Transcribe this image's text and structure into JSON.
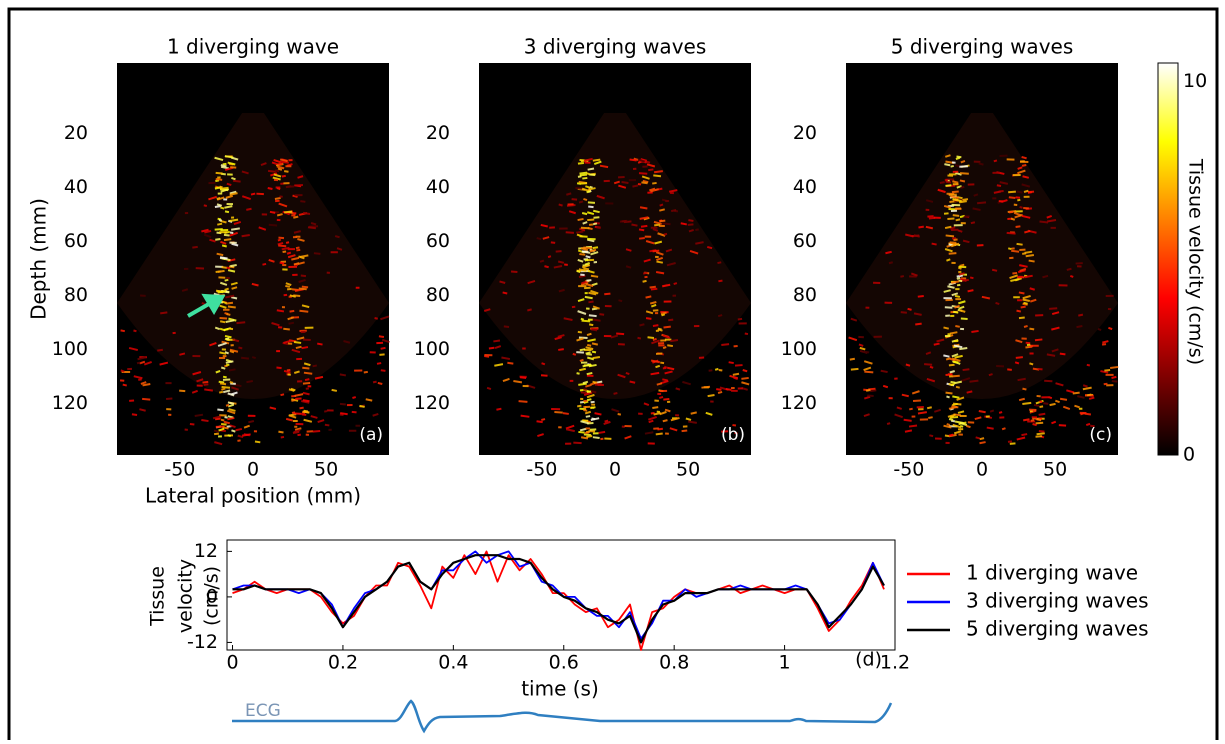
{
  "chart_data": [
    {
      "type": "heatmap",
      "panels": [
        {
          "title": "1 diverging wave",
          "label": "(a)"
        },
        {
          "title": "3 diverging waves",
          "label": "(b)"
        },
        {
          "title": "5 diverging waves",
          "label": "(c)"
        }
      ],
      "ylabel": "Depth (mm)",
      "xlabel": "Lateral position (mm)",
      "ylim": [
        -6,
        139
      ],
      "yticks": [
        20,
        40,
        60,
        80,
        100,
        120
      ],
      "xlim": [
        -93,
        93
      ],
      "xticks": [
        -50,
        0,
        50
      ],
      "colorbar": {
        "label": "Tissue  velocity (cm/s)",
        "lim": [
          0,
          10.5
        ],
        "ticks": [
          0,
          10
        ]
      }
    },
    {
      "type": "line",
      "ylabel": [
        "Tissue",
        "velocity",
        "(cm/s)"
      ],
      "xlabel": "time (s)",
      "annotation": "(d)",
      "ecg_label": "ECG",
      "xlim": [
        -0.01,
        1.2
      ],
      "xticks": [
        0,
        0.2,
        0.4,
        0.6,
        0.8,
        1,
        1.2
      ],
      "ylim": [
        -14,
        15
      ],
      "yticks": [
        -12,
        0,
        12
      ],
      "x": [
        0,
        0.02,
        0.04,
        0.06,
        0.08,
        0.1,
        0.12,
        0.14,
        0.16,
        0.18,
        0.2,
        0.22,
        0.24,
        0.26,
        0.28,
        0.3,
        0.32,
        0.34,
        0.36,
        0.38,
        0.4,
        0.42,
        0.44,
        0.46,
        0.48,
        0.5,
        0.52,
        0.54,
        0.56,
        0.58,
        0.6,
        0.62,
        0.64,
        0.66,
        0.68,
        0.7,
        0.72,
        0.74,
        0.76,
        0.78,
        0.8,
        0.82,
        0.84,
        0.86,
        0.88,
        0.9,
        0.92,
        0.94,
        0.96,
        0.98,
        1,
        1.02,
        1.04,
        1.06,
        1.08,
        1.1,
        1.12,
        1.14,
        1.16,
        1.18
      ],
      "series": [
        {
          "name": "1 diverging wave",
          "color": "#ff0000",
          "values": [
            1,
            2,
            4,
            2,
            1,
            2,
            2,
            2,
            0,
            -4,
            -7,
            -5,
            0,
            3,
            3,
            9,
            8,
            3,
            -3,
            8,
            5,
            11,
            6,
            12,
            4,
            11,
            7,
            10,
            6,
            1,
            1,
            -2,
            -4,
            -3,
            -8,
            -6,
            -2,
            -14,
            -4,
            -3,
            0,
            2,
            1,
            1,
            2,
            3,
            1,
            2,
            3,
            2,
            1,
            2,
            2,
            -3,
            -9,
            -6,
            -1,
            3,
            9,
            2
          ]
        },
        {
          "name": "3 diverging waves",
          "color": "#0000ff",
          "values": [
            2,
            3,
            3,
            2,
            2,
            2,
            1,
            2,
            1,
            -2,
            -8,
            -3,
            1,
            2,
            4,
            8,
            9,
            4,
            2,
            7,
            7,
            10,
            12,
            9,
            11,
            12,
            8,
            9,
            4,
            3,
            0,
            0,
            -3,
            -5,
            -5,
            -8,
            -4,
            -11,
            -7,
            -1,
            -1,
            2,
            0,
            1,
            2,
            2,
            3,
            2,
            2,
            2,
            2,
            3,
            2,
            -2,
            -7,
            -6,
            -2,
            2,
            9,
            3
          ]
        },
        {
          "name": "5 diverging waves",
          "color": "#000000",
          "values": [
            2,
            2,
            3,
            2,
            2,
            2,
            2,
            2,
            1,
            -3,
            -8,
            -4,
            0,
            2,
            4,
            8,
            9,
            4,
            2,
            6,
            9,
            10,
            11,
            11,
            11,
            10,
            10,
            9,
            5,
            2,
            0,
            -1,
            -3,
            -4,
            -6,
            -7,
            -5,
            -12,
            -6,
            -2,
            -1,
            1,
            1,
            1,
            2,
            2,
            2,
            2,
            2,
            2,
            2,
            2,
            2,
            -2,
            -8,
            -5,
            -2,
            2,
            8,
            3
          ]
        }
      ]
    }
  ]
}
